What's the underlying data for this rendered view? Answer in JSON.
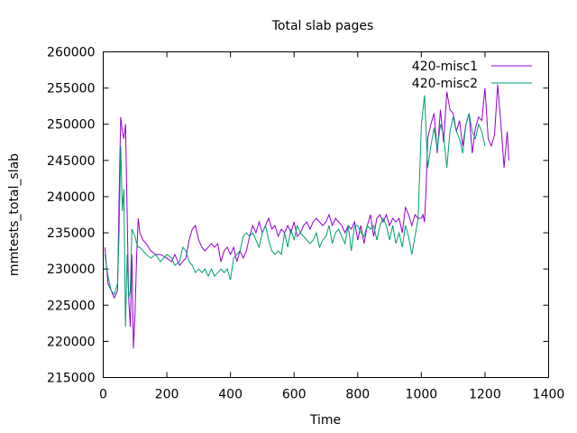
{
  "chart_data": {
    "type": "line",
    "title": "Total slab pages",
    "xlabel": "Time",
    "ylabel": "mmtests_total_slab",
    "xlim": [
      0,
      1400
    ],
    "ylim": [
      215000,
      260000
    ],
    "xticks": [
      0,
      200,
      400,
      600,
      800,
      1000,
      1200,
      1400
    ],
    "yticks": [
      215000,
      220000,
      225000,
      230000,
      235000,
      240000,
      245000,
      250000,
      255000,
      260000
    ],
    "grid": false,
    "legend_position": "top-right",
    "series": [
      {
        "name": "420-misc1",
        "color": "#9400d3",
        "x": [
          5,
          15,
          25,
          35,
          45,
          50,
          55,
          60,
          65,
          70,
          75,
          80,
          85,
          90,
          95,
          100,
          105,
          110,
          115,
          125,
          135,
          150,
          165,
          180,
          200,
          215,
          225,
          240,
          250,
          260,
          270,
          280,
          290,
          300,
          310,
          320,
          330,
          340,
          350,
          360,
          370,
          380,
          390,
          400,
          410,
          420,
          430,
          440,
          450,
          460,
          470,
          480,
          490,
          500,
          510,
          520,
          530,
          540,
          550,
          560,
          570,
          580,
          590,
          600,
          610,
          620,
          630,
          640,
          650,
          660,
          670,
          680,
          690,
          700,
          710,
          720,
          730,
          740,
          750,
          760,
          770,
          780,
          790,
          800,
          810,
          820,
          830,
          840,
          850,
          860,
          870,
          880,
          890,
          900,
          910,
          920,
          930,
          940,
          950,
          960,
          970,
          980,
          990,
          1000,
          1005,
          1010,
          1015,
          1020,
          1030,
          1040,
          1050,
          1060,
          1070,
          1080,
          1090,
          1100,
          1110,
          1120,
          1130,
          1140,
          1150,
          1160,
          1170,
          1180,
          1190,
          1200,
          1210,
          1220,
          1230,
          1240,
          1250,
          1260,
          1270,
          1275
        ],
        "y": [
          233000,
          228000,
          227000,
          226000,
          227000,
          240000,
          251000,
          249000,
          248000,
          250000,
          238000,
          226000,
          222000,
          232000,
          219000,
          224000,
          232000,
          237000,
          235000,
          234000,
          233500,
          232500,
          232000,
          232000,
          231500,
          231000,
          232000,
          230500,
          231000,
          231500,
          234000,
          235500,
          236000,
          234000,
          233000,
          232500,
          233000,
          233500,
          233000,
          233500,
          231000,
          232500,
          233000,
          232000,
          233000,
          231000,
          232500,
          231500,
          232500,
          234500,
          236000,
          235000,
          236500,
          235000,
          236000,
          237000,
          235500,
          236000,
          234500,
          235500,
          235000,
          236000,
          235000,
          236500,
          234500,
          235000,
          236000,
          236500,
          235500,
          236500,
          237000,
          236500,
          236000,
          236500,
          237500,
          236000,
          237000,
          236500,
          236000,
          235000,
          236000,
          235500,
          236500,
          234000,
          236000,
          233500,
          236000,
          237500,
          234500,
          237000,
          237500,
          236500,
          237500,
          236000,
          237000,
          236500,
          237000,
          235000,
          238500,
          237500,
          236000,
          237500,
          237000,
          237000,
          237500,
          236500,
          241000,
          248000,
          250000,
          251500,
          246000,
          252000,
          247500,
          254500,
          252000,
          251500,
          249000,
          250500,
          247000,
          250000,
          251500,
          246000,
          249500,
          251000,
          250500,
          255000,
          248000,
          247000,
          248500,
          255500,
          250000,
          244000,
          249000,
          245000
        ]
      },
      {
        "name": "420-misc2",
        "color": "#009e73",
        "x": [
          5,
          15,
          25,
          35,
          45,
          50,
          55,
          60,
          65,
          70,
          75,
          80,
          85,
          90,
          95,
          100,
          105,
          110,
          115,
          125,
          135,
          150,
          165,
          180,
          200,
          215,
          225,
          240,
          250,
          260,
          270,
          280,
          290,
          300,
          310,
          320,
          330,
          340,
          350,
          360,
          370,
          380,
          390,
          400,
          410,
          420,
          430,
          440,
          450,
          460,
          470,
          480,
          490,
          500,
          510,
          520,
          530,
          540,
          550,
          560,
          570,
          580,
          590,
          600,
          610,
          620,
          630,
          640,
          650,
          660,
          670,
          680,
          690,
          700,
          710,
          720,
          730,
          740,
          750,
          760,
          770,
          780,
          790,
          800,
          810,
          820,
          830,
          840,
          850,
          860,
          870,
          880,
          890,
          900,
          910,
          920,
          930,
          940,
          950,
          960,
          970,
          980,
          990,
          1000,
          1010,
          1020,
          1030,
          1040,
          1050,
          1060,
          1070,
          1080,
          1090,
          1100,
          1110,
          1120,
          1130,
          1140,
          1150,
          1160,
          1170,
          1180,
          1190,
          1200
        ],
        "y": [
          232000,
          229000,
          227000,
          226500,
          228000,
          235000,
          247000,
          238000,
          241000,
          222000,
          232000,
          226000,
          227000,
          235500,
          235000,
          234500,
          233500,
          233000,
          233000,
          232500,
          232000,
          231500,
          232000,
          231000,
          232000,
          231500,
          230500,
          231000,
          233000,
          232500,
          231000,
          230500,
          229500,
          230000,
          229500,
          230000,
          229000,
          230000,
          229000,
          229500,
          230000,
          229500,
          230000,
          228500,
          231500,
          232000,
          232500,
          234500,
          235000,
          234500,
          235000,
          234000,
          233000,
          235000,
          236000,
          234000,
          232500,
          232000,
          232500,
          232000,
          235000,
          233000,
          235500,
          234000,
          236000,
          235000,
          234500,
          234000,
          233500,
          234000,
          235000,
          233000,
          234000,
          234500,
          236000,
          233500,
          235000,
          235500,
          234500,
          233500,
          236000,
          232500,
          236000,
          236000,
          235000,
          234500,
          236000,
          235500,
          236000,
          234000,
          236000,
          237000,
          236000,
          234000,
          236000,
          233500,
          235000,
          233000,
          236000,
          234500,
          232000,
          234500,
          237000,
          250000,
          254000,
          244000,
          247000,
          249500,
          246500,
          250000,
          248500,
          244000,
          249000,
          251000,
          249000,
          248000,
          246000,
          250000,
          251500,
          249000,
          248000,
          250000,
          249000,
          247000
        ]
      }
    ]
  }
}
